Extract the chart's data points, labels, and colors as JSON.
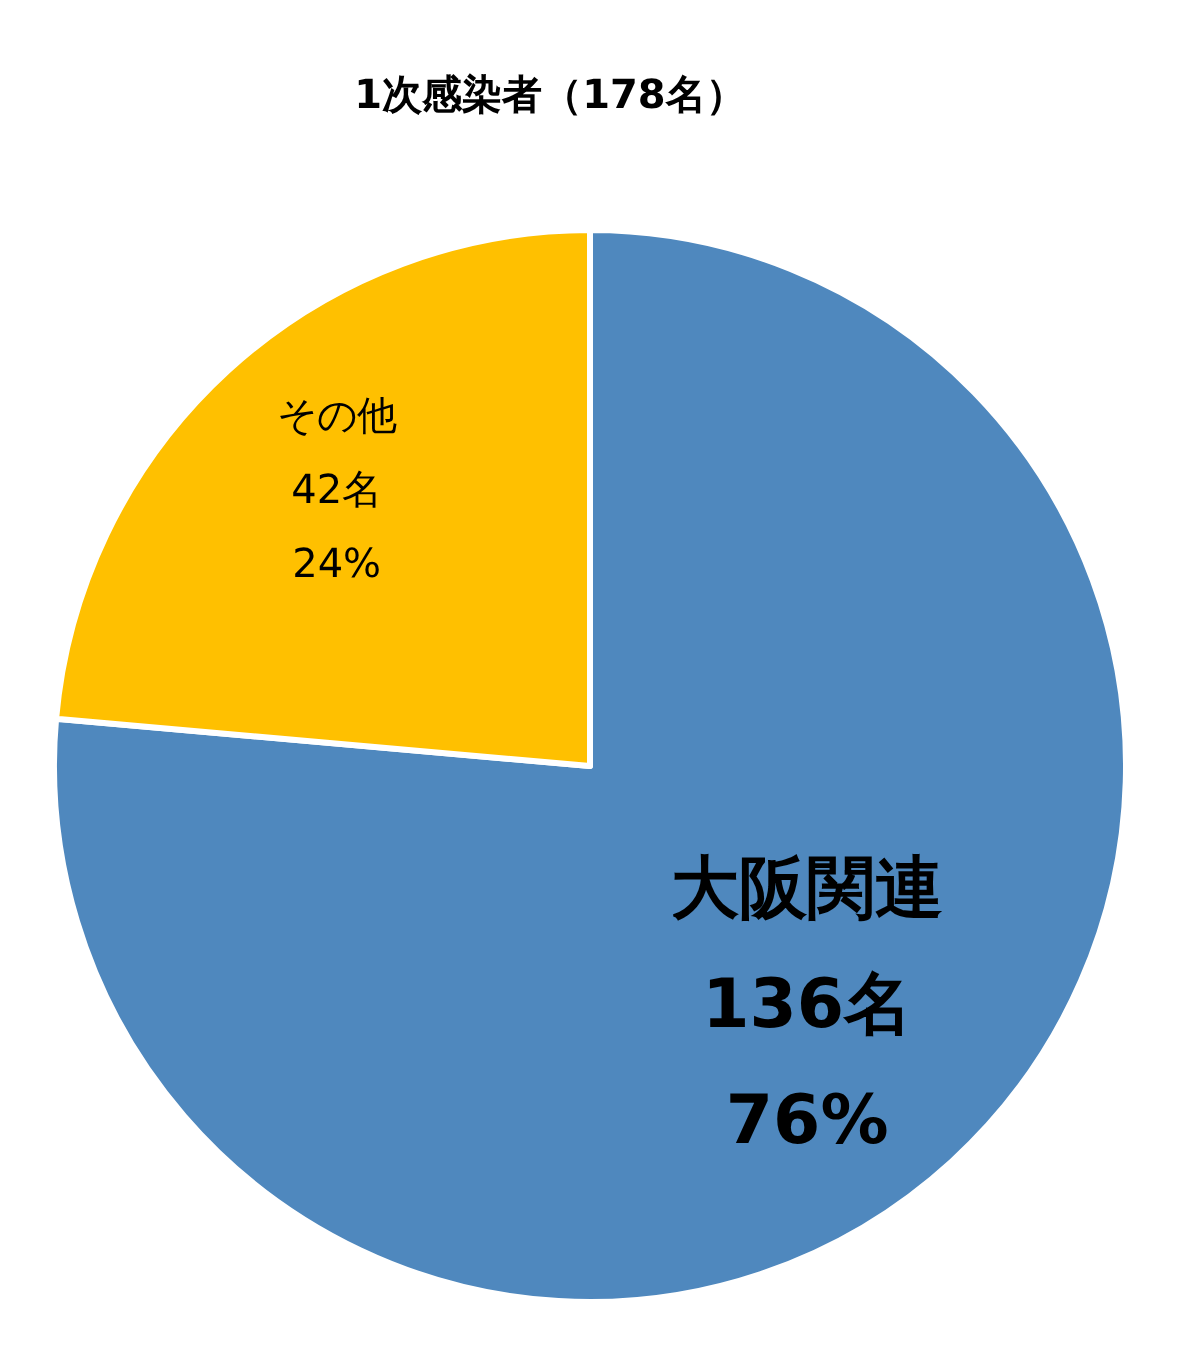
{
  "chart_data": {
    "type": "pie",
    "title": "1次感染者（178名）",
    "categories": [
      "大阪関連",
      "その他"
    ],
    "values": [
      136,
      42
    ],
    "colors": [
      "#4f88be",
      "#ffc000"
    ],
    "value_labels": [
      "136名\n76%",
      "42名\n24%"
    ]
  }
}
